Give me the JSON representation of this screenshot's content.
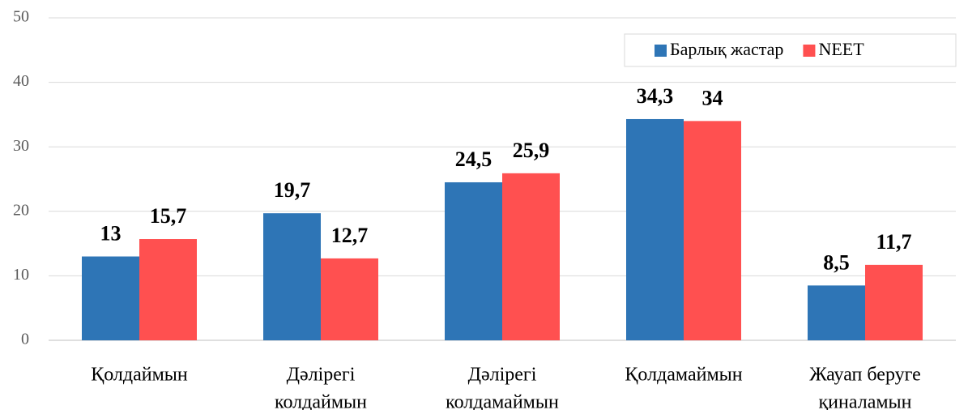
{
  "chart_data": {
    "type": "bar",
    "categories": [
      [
        "Қолдаймын"
      ],
      [
        "Дәлірегі",
        "колдаймын"
      ],
      [
        "Дәлірегі",
        "колдамаймын"
      ],
      [
        "Қолдамаймын"
      ],
      [
        "Жауап беруге",
        "қиналамын"
      ]
    ],
    "series": [
      {
        "name": "Барлық жастар",
        "color": "#2e75b6",
        "values": [
          13,
          19.7,
          24.5,
          34.3,
          8.5
        ],
        "value_labels": [
          "13",
          "19,7",
          "24,5",
          "34,3",
          "8,5"
        ]
      },
      {
        "name": "NEET",
        "color": "#ff5050",
        "values": [
          15.7,
          12.7,
          25.9,
          34,
          11.7
        ],
        "value_labels": [
          "15,7",
          "12,7",
          "25,9",
          "34",
          "11,7"
        ]
      }
    ],
    "ylim": [
      0,
      50
    ],
    "yticks": [
      0,
      10,
      20,
      30,
      40,
      50
    ],
    "grid": true,
    "legend": "top-right"
  }
}
